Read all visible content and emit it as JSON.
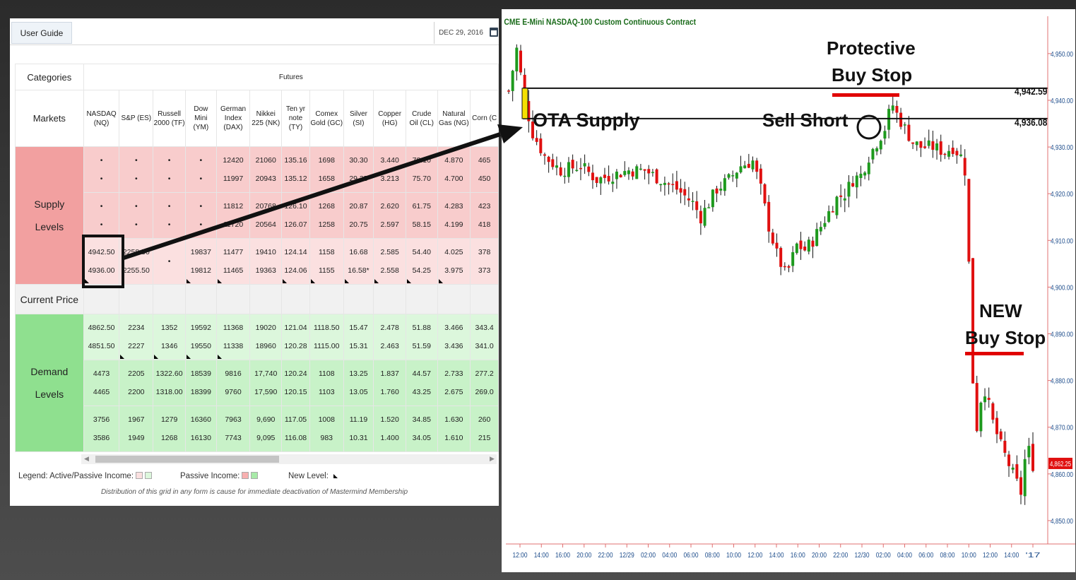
{
  "grid": {
    "user_guide": "User Guide",
    "date": "DEC 29, 2016",
    "categories_label": "Categories",
    "futures_label": "Futures",
    "markets_label": "Markets",
    "supply_label": [
      "Supply",
      "Levels"
    ],
    "current_price_label": "Current Price",
    "demand_label": [
      "Demand",
      "Levels"
    ],
    "markets": [
      [
        "NASDAQ",
        "(NQ)"
      ],
      [
        "S&P (ES)"
      ],
      [
        "Russell",
        "2000 (TF)"
      ],
      [
        "Dow",
        "Mini",
        "(YM)"
      ],
      [
        "German",
        "Index",
        "(DAX)"
      ],
      [
        "Nikkei",
        "225 (NK)"
      ],
      [
        "Ten yr",
        "note",
        "(TY)"
      ],
      [
        "Comex",
        "Gold (GC)"
      ],
      [
        "Silver",
        "(SI)"
      ],
      [
        "Copper",
        "(HG)"
      ],
      [
        "Crude",
        "Oil (CL)"
      ],
      [
        "Natural",
        "Gas (NG)"
      ],
      [
        "Corn (C"
      ]
    ],
    "supply_rows": [
      [
        [
          "•",
          "•"
        ],
        [
          "•",
          "•"
        ],
        [
          "•",
          "•"
        ],
        [
          "•",
          "•"
        ],
        [
          "12420",
          "11997"
        ],
        [
          "21060",
          "20943"
        ],
        [
          "135.16",
          "135.12"
        ],
        [
          "1698",
          "1658"
        ],
        [
          "30.30",
          "29.25"
        ],
        [
          "3.440",
          "3.213"
        ],
        [
          "78.10",
          "75.70"
        ],
        [
          "4.870",
          "4.700"
        ],
        [
          "465",
          "450"
        ]
      ],
      [
        [
          "•",
          "•"
        ],
        [
          "•",
          "•"
        ],
        [
          "•",
          "•"
        ],
        [
          "•",
          "•"
        ],
        [
          "11812",
          "11720"
        ],
        [
          "20768",
          "20564"
        ],
        [
          "126.10",
          "126.07"
        ],
        [
          "1268",
          "1258"
        ],
        [
          "20.87",
          "20.75"
        ],
        [
          "2.620",
          "2.597"
        ],
        [
          "61.75",
          "58.15"
        ],
        [
          "4.283",
          "4.199"
        ],
        [
          "423",
          "418"
        ]
      ],
      [
        [
          "4942.50",
          "4936.00"
        ],
        [
          "2258.50",
          "2255.50"
        ],
        [
          "",
          "•"
        ],
        [
          "19837",
          "19812"
        ],
        [
          "11477",
          "11465"
        ],
        [
          "19410",
          "19363"
        ],
        [
          "124.14",
          "124.06"
        ],
        [
          "1158",
          "1155"
        ],
        [
          "16.68",
          "16.58*"
        ],
        [
          "2.585",
          "2.558"
        ],
        [
          "54.40",
          "54.25"
        ],
        [
          "4.025",
          "3.975"
        ],
        [
          "378",
          "373"
        ]
      ]
    ],
    "demand_rows": [
      [
        [
          "4862.50",
          "4851.50"
        ],
        [
          "2234",
          "2227"
        ],
        [
          "1352",
          "1346"
        ],
        [
          "19592",
          "19550"
        ],
        [
          "11368",
          "11338"
        ],
        [
          "19020",
          "18960"
        ],
        [
          "121.04",
          "120.28"
        ],
        [
          "1118.50",
          "1115.00"
        ],
        [
          "15.47",
          "15.31"
        ],
        [
          "2.478",
          "2.463"
        ],
        [
          "51.88",
          "51.59"
        ],
        [
          "3.466",
          "3.436"
        ],
        [
          "343.4",
          "341.0"
        ]
      ],
      [
        [
          "4473",
          "4465"
        ],
        [
          "2205",
          "2200"
        ],
        [
          "1322.60",
          "1318.00"
        ],
        [
          "18539",
          "18399"
        ],
        [
          "9816",
          "9760"
        ],
        [
          "17,740",
          "17,590"
        ],
        [
          "120.24",
          "120.15"
        ],
        [
          "1108",
          "1103"
        ],
        [
          "13.25",
          "13.05"
        ],
        [
          "1.837",
          "1.760"
        ],
        [
          "44.57",
          "43.25"
        ],
        [
          "2.733",
          "2.675"
        ],
        [
          "277.2",
          "269.0"
        ]
      ],
      [
        [
          "3756",
          "3586"
        ],
        [
          "1967",
          "1949"
        ],
        [
          "1279",
          "1268"
        ],
        [
          "16360",
          "16130"
        ],
        [
          "7963",
          "7743"
        ],
        [
          "9,690",
          "9,095"
        ],
        [
          "117.05",
          "116.08"
        ],
        [
          "1008",
          "983"
        ],
        [
          "11.19",
          "10.31"
        ],
        [
          "1.520",
          "1.400"
        ],
        [
          "34.85",
          "34.05"
        ],
        [
          "1.630",
          "1.610"
        ],
        [
          "260",
          "215"
        ]
      ]
    ],
    "legend": {
      "active_passive": "Legend: Active/Passive Income:",
      "passive": "Passive Income:",
      "new_level": "New Level:"
    },
    "disclaimer": "Distribution of this grid in any form is cause for immediate deactivation of Mastermind Membership",
    "colors": {
      "supply": "#f2a0a0",
      "demand": "#8fe08f"
    }
  },
  "chart": {
    "title": "CME  E-Mini NASDAQ-100 Custom Continuous Contract",
    "annotations": {
      "protective": [
        "Protective",
        "Buy Stop"
      ],
      "ota_supply": "OTA Supply",
      "sell_short": "Sell Short",
      "new_buy_stop": [
        "NEW",
        "Buy Stop"
      ]
    },
    "level_labels": {
      "top": "4,942.59",
      "bottom": "4,936.08"
    },
    "current_price": "4,862.25",
    "colors": {
      "up": "#1e9a1e",
      "down": "#e01010",
      "zone_marker": "#f5e000",
      "underline": "#e00000"
    }
  },
  "chart_data": {
    "type": "candlestick",
    "title": "CME  E-Mini NASDAQ-100 Custom Continuous Contract",
    "y_ticks": [
      "4,950.00",
      "4,940.00",
      "4,930.00",
      "4,920.00",
      "4,910.00",
      "4,900.00",
      "4,890.00",
      "4,880.00",
      "4,870.00",
      "4,860.00",
      "4,850.00"
    ],
    "y_tick_values": [
      4950,
      4940,
      4930,
      4920,
      4910,
      4900,
      4890,
      4880,
      4870,
      4860,
      4850
    ],
    "ylim": [
      4845,
      4958
    ],
    "x_ticks": [
      "12:00",
      "14:00",
      "16:00",
      "20:00",
      "22:00",
      "12/29",
      "02:00",
      "04:00",
      "06:00",
      "08:00",
      "10:00",
      "12:00",
      "14:00",
      "16:00",
      "20:00",
      "22:00",
      "12/30",
      "02:00",
      "04:00",
      "06:00",
      "08:00",
      "10:00",
      "12:00",
      "14:00",
      "'17"
    ],
    "supply_zone": [
      4936.08,
      4942.59
    ],
    "last_price": 4862.25,
    "close_path": [
      [
        0,
        4942
      ],
      [
        2,
        4951
      ],
      [
        4,
        4940
      ],
      [
        6,
        4933
      ],
      [
        9,
        4928
      ],
      [
        13,
        4925
      ],
      [
        18,
        4926
      ],
      [
        22,
        4923
      ],
      [
        26,
        4924
      ],
      [
        30,
        4925
      ],
      [
        34,
        4925
      ],
      [
        38,
        4923
      ],
      [
        42,
        4921
      ],
      [
        46,
        4918
      ],
      [
        48,
        4915
      ],
      [
        50,
        4918
      ],
      [
        52,
        4921
      ],
      [
        55,
        4923
      ],
      [
        58,
        4926
      ],
      [
        61,
        4927
      ],
      [
        63,
        4921
      ],
      [
        65,
        4913
      ],
      [
        67,
        4907
      ],
      [
        69,
        4903
      ],
      [
        70,
        4904
      ],
      [
        72,
        4909
      ],
      [
        74,
        4908
      ],
      [
        76,
        4910
      ],
      [
        78,
        4913
      ],
      [
        80,
        4916
      ],
      [
        82,
        4919
      ],
      [
        84,
        4920
      ],
      [
        86,
        4923
      ],
      [
        88,
        4924
      ],
      [
        90,
        4928
      ],
      [
        92,
        4931
      ],
      [
        94,
        4934
      ],
      [
        95,
        4937
      ],
      [
        96,
        4939
      ],
      [
        97,
        4937
      ],
      [
        99,
        4934
      ],
      [
        101,
        4931
      ],
      [
        103,
        4930
      ],
      [
        106,
        4930
      ],
      [
        109,
        4929
      ],
      [
        111,
        4930
      ],
      [
        113,
        4928
      ],
      [
        114,
        4925
      ],
      [
        115,
        4905
      ],
      [
        116,
        4880
      ],
      [
        117,
        4870
      ],
      [
        118,
        4876
      ],
      [
        119,
        4878
      ],
      [
        121,
        4871
      ],
      [
        123,
        4866
      ],
      [
        125,
        4862
      ],
      [
        127,
        4858
      ],
      [
        128,
        4856
      ],
      [
        129,
        4863
      ],
      [
        130,
        4865
      ],
      [
        131,
        4862
      ]
    ],
    "candle_count": 132
  }
}
